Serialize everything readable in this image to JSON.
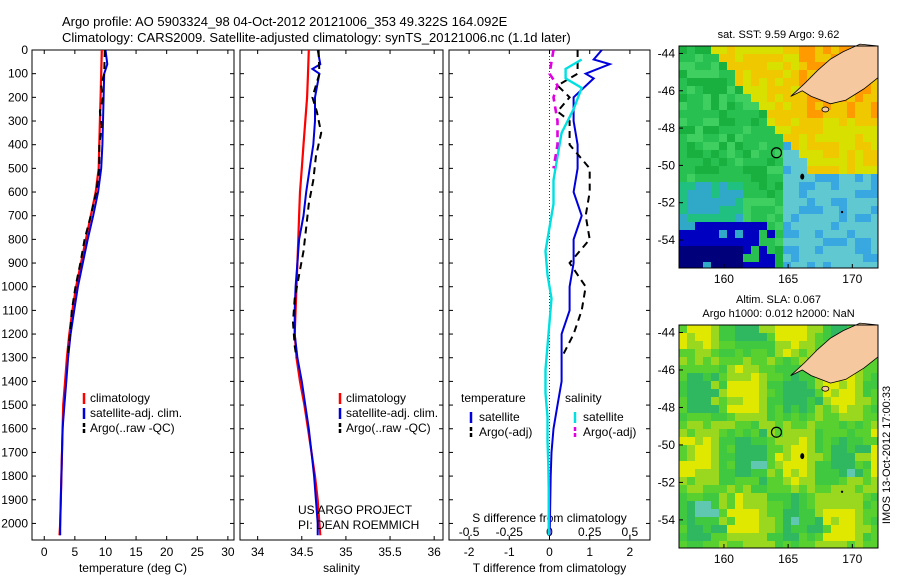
{
  "header": {
    "line1": "Argo profile: AO 5903324_98 04-Oct-2012 20121006_353 49.322S 164.092E",
    "line2": "Climatology: CARS2009. Satellite-adjusted climatology: synTS_20121006.nc (1.1d later)"
  },
  "footer_note": {
    "project": "US ARGO PROJECT",
    "pi": "PI: DEAN ROEMMICH"
  },
  "side_stamp": "IMOS 13-Oct-2012 17:00:33",
  "colors": {
    "climatology": "#ff0000",
    "satellite": "#0000dd",
    "argo": "#000000",
    "sat_salinity": "#00e0e0",
    "argo_salinity": "#e000e0"
  },
  "chart_data": [
    {
      "type": "line",
      "xlabel": "temperature (deg C)",
      "xlim": [
        -2,
        31
      ],
      "ylim": [
        2070,
        0
      ],
      "xticks": [
        0,
        5,
        10,
        15,
        20,
        25,
        30
      ],
      "yticks": [
        0,
        100,
        200,
        300,
        400,
        500,
        600,
        700,
        800,
        900,
        1000,
        1100,
        1200,
        1300,
        1400,
        1500,
        1600,
        1700,
        1800,
        1900,
        2000
      ],
      "legend": [
        "climatology",
        "satellite-adj. clim.",
        "Argo(..raw -QC)"
      ],
      "series": [
        {
          "name": "climatology",
          "style": "clim",
          "points": [
            [
              9.4,
              0
            ],
            [
              9.3,
              100
            ],
            [
              9.2,
              200
            ],
            [
              9.1,
              300
            ],
            [
              9.0,
              400
            ],
            [
              8.9,
              500
            ],
            [
              8.4,
              600
            ],
            [
              7.6,
              700
            ],
            [
              6.8,
              800
            ],
            [
              6.0,
              900
            ],
            [
              5.2,
              1000
            ],
            [
              4.6,
              1100
            ],
            [
              4.1,
              1200
            ],
            [
              3.7,
              1300
            ],
            [
              3.4,
              1400
            ],
            [
              3.1,
              1500
            ],
            [
              3.0,
              1600
            ],
            [
              2.9,
              1700
            ],
            [
              2.8,
              1800
            ],
            [
              2.7,
              1900
            ],
            [
              2.6,
              2000
            ],
            [
              2.5,
              2050
            ]
          ]
        },
        {
          "name": "satellite-adj. clim.",
          "style": "sat",
          "points": [
            [
              10.0,
              0
            ],
            [
              10.3,
              60
            ],
            [
              9.8,
              100
            ],
            [
              9.7,
              200
            ],
            [
              9.6,
              300
            ],
            [
              9.5,
              400
            ],
            [
              9.3,
              500
            ],
            [
              8.8,
              600
            ],
            [
              8.0,
              700
            ],
            [
              7.1,
              800
            ],
            [
              6.3,
              900
            ],
            [
              5.5,
              1000
            ],
            [
              4.9,
              1100
            ],
            [
              4.3,
              1200
            ],
            [
              3.9,
              1300
            ],
            [
              3.6,
              1400
            ],
            [
              3.3,
              1500
            ],
            [
              3.0,
              1600
            ],
            [
              2.9,
              1700
            ],
            [
              2.8,
              1800
            ],
            [
              2.7,
              1900
            ],
            [
              2.6,
              2000
            ],
            [
              2.6,
              2050
            ]
          ]
        },
        {
          "name": "Argo(..raw -QC)",
          "style": "argo",
          "points": [
            [
              9.9,
              0
            ],
            [
              9.8,
              100
            ],
            [
              9.3,
              150
            ],
            [
              9.6,
              200
            ],
            [
              9.1,
              260
            ],
            [
              9.4,
              320
            ],
            [
              9.0,
              400
            ],
            [
              9.0,
              500
            ],
            [
              8.5,
              600
            ],
            [
              7.6,
              700
            ],
            [
              6.6,
              800
            ],
            [
              5.9,
              900
            ],
            [
              5.1,
              1000
            ],
            [
              4.5,
              1100
            ],
            [
              4.2,
              1200
            ],
            [
              3.8,
              1300
            ]
          ]
        }
      ]
    },
    {
      "type": "line",
      "xlabel": "salinity",
      "xlim": [
        33.8,
        36.1
      ],
      "ylim": [
        2070,
        0
      ],
      "xticks": [
        34,
        34.5,
        35,
        35.5,
        36
      ],
      "legend": [
        "climatology",
        "satellite-adj. clim.",
        "Argo(..raw -QC)"
      ],
      "series": [
        {
          "name": "climatology",
          "style": "clim",
          "points": [
            [
              34.58,
              0
            ],
            [
              34.57,
              100
            ],
            [
              34.56,
              200
            ],
            [
              34.54,
              300
            ],
            [
              34.52,
              400
            ],
            [
              34.5,
              500
            ],
            [
              34.48,
              600
            ],
            [
              34.47,
              700
            ],
            [
              34.46,
              800
            ],
            [
              34.45,
              900
            ],
            [
              34.44,
              1000
            ],
            [
              34.43,
              1100
            ],
            [
              34.42,
              1200
            ],
            [
              34.44,
              1300
            ],
            [
              34.48,
              1400
            ],
            [
              34.53,
              1500
            ],
            [
              34.57,
              1600
            ],
            [
              34.61,
              1700
            ],
            [
              34.65,
              1800
            ],
            [
              34.68,
              1900
            ],
            [
              34.7,
              2000
            ],
            [
              34.71,
              2050
            ]
          ]
        },
        {
          "name": "satellite-adj. clim.",
          "style": "sat",
          "points": [
            [
              34.68,
              0
            ],
            [
              34.71,
              60
            ],
            [
              34.62,
              80
            ],
            [
              34.7,
              100
            ],
            [
              34.65,
              200
            ],
            [
              34.65,
              300
            ],
            [
              34.63,
              400
            ],
            [
              34.59,
              500
            ],
            [
              34.55,
              600
            ],
            [
              34.52,
              700
            ],
            [
              34.47,
              800
            ],
            [
              34.45,
              900
            ],
            [
              34.43,
              1000
            ],
            [
              34.42,
              1100
            ],
            [
              34.42,
              1200
            ],
            [
              34.45,
              1300
            ],
            [
              34.5,
              1400
            ],
            [
              34.54,
              1500
            ],
            [
              34.58,
              1600
            ],
            [
              34.61,
              1700
            ],
            [
              34.64,
              1800
            ],
            [
              34.66,
              1900
            ],
            [
              34.68,
              2000
            ],
            [
              34.68,
              2050
            ]
          ]
        },
        {
          "name": "Argo(..raw -QC)",
          "style": "argo",
          "points": [
            [
              34.69,
              0
            ],
            [
              34.7,
              100
            ],
            [
              34.62,
              200
            ],
            [
              34.67,
              260
            ],
            [
              34.72,
              350
            ],
            [
              34.66,
              450
            ],
            [
              34.63,
              550
            ],
            [
              34.58,
              650
            ],
            [
              34.55,
              750
            ],
            [
              34.52,
              850
            ],
            [
              34.47,
              950
            ],
            [
              34.42,
              1050
            ],
            [
              34.4,
              1150
            ],
            [
              34.42,
              1250
            ],
            [
              34.44,
              1300
            ]
          ]
        }
      ]
    },
    {
      "type": "line",
      "xlabel": "T difference from climatology",
      "top_axis_label": "S difference from climatology",
      "xlim": [
        -2.5,
        2.5
      ],
      "ylim": [
        2070,
        0
      ],
      "xticks": [
        -2,
        -1,
        0,
        1,
        2
      ],
      "top_ticks": [
        {
          "label": "-0.5",
          "x": -2
        },
        {
          "label": "-0.25",
          "x": -1
        },
        {
          "label": "0",
          "x": 0
        },
        {
          "label": "0.25",
          "x": 1
        },
        {
          "label": "0.5",
          "x": 2
        }
      ],
      "legend_temperature_title": "temperature",
      "legend_salinity_title": "salinity",
      "legend_temperature": [
        "satellite",
        "Argo(-adj)"
      ],
      "legend_salinity": [
        "satellite",
        "Argo(-adj)"
      ],
      "series": [
        {
          "name": "satellite",
          "style": "sat",
          "points": [
            [
              1.3,
              0
            ],
            [
              1.1,
              40
            ],
            [
              1.5,
              60
            ],
            [
              0.9,
              100
            ],
            [
              1.1,
              120
            ],
            [
              0.6,
              200
            ],
            [
              0.6,
              300
            ],
            [
              0.7,
              400
            ],
            [
              0.7,
              500
            ],
            [
              0.6,
              600
            ],
            [
              0.8,
              700
            ],
            [
              0.6,
              800
            ],
            [
              0.6,
              900
            ],
            [
              0.5,
              1000
            ],
            [
              0.5,
              1100
            ],
            [
              0.3,
              1200
            ],
            [
              0.3,
              1300
            ],
            [
              0.3,
              1400
            ],
            [
              0.2,
              1500
            ],
            [
              0.1,
              1600
            ],
            [
              0.05,
              1700
            ],
            [
              0.03,
              1800
            ],
            [
              0.02,
              1900
            ],
            [
              0.01,
              2000
            ],
            [
              0.0,
              2050
            ]
          ]
        },
        {
          "name": "Argo(-adj)",
          "style": "argo",
          "points": [
            [
              0.7,
              0
            ],
            [
              0.7,
              100
            ],
            [
              0.2,
              150
            ],
            [
              0.5,
              200
            ],
            [
              0.2,
              260
            ],
            [
              0.5,
              300
            ],
            [
              0.5,
              400
            ],
            [
              1.0,
              500
            ],
            [
              1.0,
              600
            ],
            [
              0.9,
              700
            ],
            [
              1.0,
              800
            ],
            [
              0.5,
              900
            ],
            [
              0.9,
              1000
            ],
            [
              0.8,
              1100
            ],
            [
              0.6,
              1200
            ],
            [
              0.3,
              1300
            ]
          ]
        },
        {
          "name": "satellite",
          "style": "satS",
          "points": [
            [
              0.8,
              40
            ],
            [
              0.4,
              80
            ],
            [
              0.4,
              120
            ],
            [
              0.8,
              160
            ],
            [
              0.6,
              250
            ],
            [
              0.3,
              350
            ],
            [
              0.2,
              450
            ],
            [
              0.1,
              550
            ],
            [
              0.1,
              650
            ],
            [
              0.0,
              750
            ],
            [
              -0.1,
              850
            ],
            [
              -0.05,
              950
            ],
            [
              0.05,
              1050
            ],
            [
              0.0,
              1150
            ],
            [
              -0.05,
              1250
            ],
            [
              -0.1,
              1350
            ],
            [
              -0.1,
              1450
            ],
            [
              -0.05,
              1550
            ],
            [
              -0.05,
              1650
            ],
            [
              -0.03,
              1750
            ],
            [
              -0.02,
              1850
            ],
            [
              -0.02,
              1950
            ],
            [
              -0.02,
              2050
            ]
          ]
        },
        {
          "name": "Argo(-adj)",
          "style": "argoS",
          "points": [
            [
              0.1,
              0
            ],
            [
              0.0,
              100
            ],
            [
              0.2,
              150
            ],
            [
              0.1,
              200
            ],
            [
              0.2,
              300
            ],
            [
              0.2,
              400
            ],
            [
              0.1,
              500
            ]
          ]
        }
      ]
    }
  ],
  "maps": {
    "sst": {
      "title": "sat. SST: 9.59 Argo: 9.62",
      "xlim": [
        156.5,
        172
      ],
      "ylim": [
        -55.5,
        -43.6
      ],
      "xticks": [
        160,
        165,
        170
      ],
      "yticks": [
        -44,
        -46,
        -48,
        -50,
        -52,
        -54
      ]
    },
    "sla": {
      "title_line1": "Altim. SLA: 0.067",
      "title_line2": "Argo h1000: 0.012 h2000: NaN",
      "xlim": [
        156.5,
        172
      ],
      "ylim": [
        -55.5,
        -43.6
      ],
      "xticks": [
        160,
        165,
        170
      ],
      "yticks": [
        -44,
        -46,
        -48,
        -50,
        -52,
        -54
      ]
    },
    "argo_position": {
      "lon": 164.092,
      "lat": -49.322
    }
  }
}
